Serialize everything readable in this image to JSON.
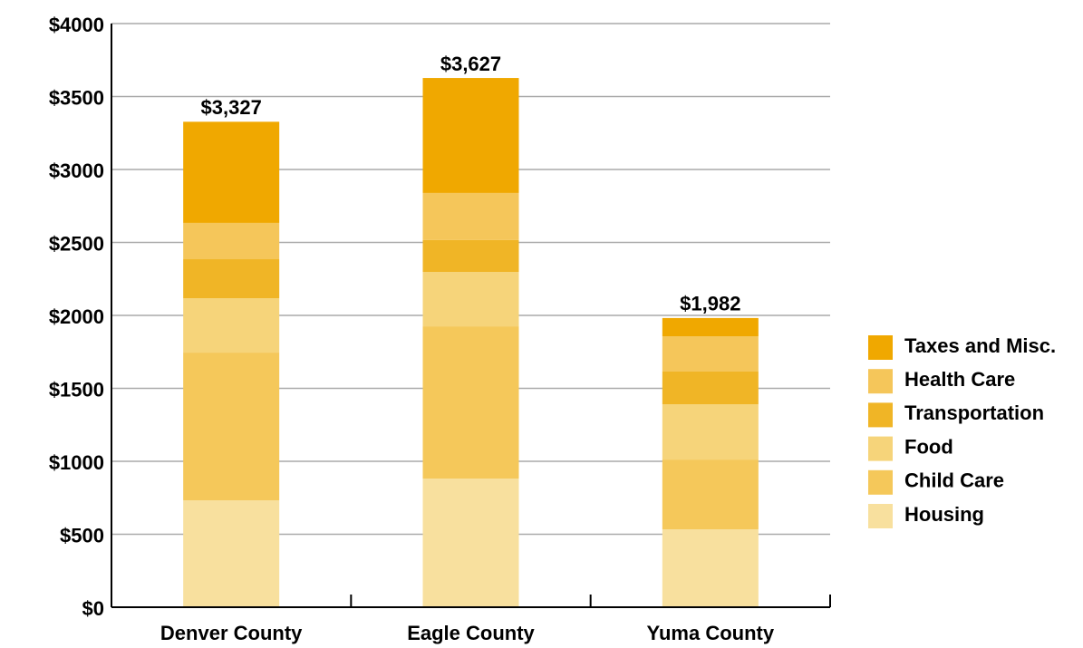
{
  "chart_data": {
    "type": "stacked_bar",
    "categories": [
      "Denver County",
      "Eagle County",
      "Yuma County"
    ],
    "series": [
      {
        "name": "Housing",
        "color": "#f8e09e",
        "values": [
          733,
          882,
          534
        ]
      },
      {
        "name": "Child Care",
        "color": "#f5c85a",
        "values": [
          1012,
          1043,
          478
        ]
      },
      {
        "name": "Food",
        "color": "#f6d47a",
        "values": [
          373,
          373,
          379
        ]
      },
      {
        "name": "Transportation",
        "color": "#f0b526",
        "values": [
          267,
          218,
          224
        ]
      },
      {
        "name": "Health Care",
        "color": "#f5c65a",
        "values": [
          249,
          323,
          242
        ]
      },
      {
        "name": "Taxes and Misc.",
        "color": "#f0a800",
        "values": [
          693,
          788,
          125
        ]
      }
    ],
    "totals": [
      3327,
      3627,
      1982
    ],
    "total_labels": [
      "$3,327",
      "$3,627",
      "$1,982"
    ],
    "ylim": [
      0,
      4000
    ],
    "yticks": [
      {
        "value": 0,
        "label": "$0"
      },
      {
        "value": 500,
        "label": "$500"
      },
      {
        "value": 1000,
        "label": "$1000"
      },
      {
        "value": 1500,
        "label": "$1500"
      },
      {
        "value": 2000,
        "label": "$2000"
      },
      {
        "value": 2500,
        "label": "$2500"
      },
      {
        "value": 3000,
        "label": "$3000"
      },
      {
        "value": 3500,
        "label": "$3500"
      },
      {
        "value": 4000,
        "label": "$4000"
      }
    ],
    "grid": true
  }
}
